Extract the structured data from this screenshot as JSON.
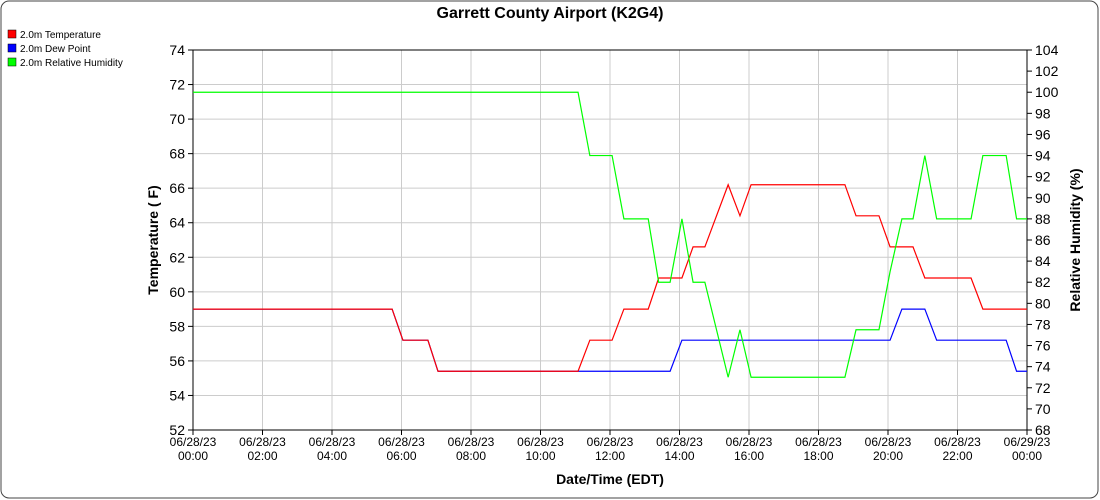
{
  "chart_data": {
    "type": "line",
    "title": "Garrett County Airport (K2G4)",
    "xlabel": "Date/Time (EDT)",
    "ylabel": "Temperature ( F)",
    "y2label": "Relative Humidity (%)",
    "x": [
      0,
      5.73,
      6.04,
      6.76,
      7.05,
      11.08,
      11.42,
      12.06,
      12.4,
      13.1,
      13.4,
      13.73,
      14.07,
      14.39,
      14.73,
      15.4,
      15.74,
      16.06,
      18.76,
      19.08,
      19.74,
      20.06,
      20.4,
      20.72,
      21.06,
      21.4,
      22.39,
      22.73,
      23.4,
      23.7,
      24
    ],
    "series": [
      {
        "name": "2.0m Temperature",
        "color": "#ff0000",
        "axis": "y",
        "values": [
          59,
          59,
          57.2,
          57.2,
          55.4,
          55.4,
          57.2,
          57.2,
          59,
          59,
          60.8,
          60.8,
          60.8,
          62.6,
          62.6,
          66.2,
          64.4,
          66.2,
          66.2,
          64.4,
          64.4,
          62.6,
          62.6,
          62.6,
          60.8,
          60.8,
          60.8,
          59,
          59,
          59,
          59
        ]
      },
      {
        "name": "2.0m Dew Point",
        "color": "#0000ff",
        "axis": "y",
        "values": [
          59,
          59,
          57.2,
          57.2,
          55.4,
          55.4,
          55.4,
          55.4,
          55.4,
          55.4,
          55.4,
          55.4,
          57.2,
          57.2,
          57.2,
          57.2,
          57.2,
          57.2,
          57.2,
          57.2,
          57.2,
          57.2,
          59,
          59,
          59,
          57.2,
          57.2,
          57.2,
          57.2,
          55.4,
          55.4
        ]
      },
      {
        "name": "2.0m Relative Humidity",
        "color": "#00ff00",
        "axis": "y2",
        "values": [
          100,
          100,
          100,
          100,
          100,
          100,
          94,
          94,
          88,
          88,
          82,
          82,
          88,
          82,
          82,
          73,
          77.5,
          73,
          73,
          77.5,
          77.5,
          83,
          88,
          88,
          94,
          88,
          88,
          94,
          94,
          88,
          88
        ]
      }
    ],
    "xlim": [
      0,
      24
    ],
    "xticks": [
      {
        "value": 0,
        "label": "06/28/23 00:00"
      },
      {
        "value": 2,
        "label": "06/28/23 02:00"
      },
      {
        "value": 4,
        "label": "06/28/23 04:00"
      },
      {
        "value": 6,
        "label": "06/28/23 06:00"
      },
      {
        "value": 8,
        "label": "06/28/23 08:00"
      },
      {
        "value": 10,
        "label": "06/28/23 10:00"
      },
      {
        "value": 12,
        "label": "06/28/23 12:00"
      },
      {
        "value": 14,
        "label": "06/28/23 14:00"
      },
      {
        "value": 16,
        "label": "06/28/23 16:00"
      },
      {
        "value": 18,
        "label": "06/28/23 18:00"
      },
      {
        "value": 20,
        "label": "06/28/23 20:00"
      },
      {
        "value": 22,
        "label": "06/28/23 22:00"
      },
      {
        "value": 24,
        "label": "06/29/23 00:00"
      }
    ],
    "ylim": [
      52,
      74
    ],
    "yticks": [
      52,
      54,
      56,
      58,
      60,
      62,
      64,
      66,
      68,
      70,
      72,
      74
    ],
    "y2lim": [
      68,
      104
    ],
    "y2ticks": [
      68,
      70,
      72,
      74,
      76,
      78,
      80,
      82,
      84,
      86,
      88,
      90,
      92,
      94,
      96,
      98,
      100,
      102,
      104
    ],
    "grid": true,
    "legend": "top-left"
  }
}
